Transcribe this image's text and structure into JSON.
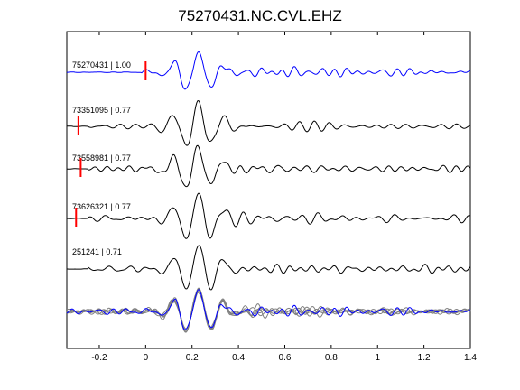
{
  "chart_data": {
    "type": "line",
    "title": "75270431.NC.CVL.EHZ",
    "xlabel": "",
    "ylabel": "",
    "xlim": [
      -0.34,
      1.4
    ],
    "x_ticks": [
      "-0.2",
      "0",
      "0.2",
      "0.4",
      "0.6",
      "0.8",
      "1",
      "1.2",
      "1.4"
    ],
    "x_tick_values": [
      -0.2,
      0,
      0.2,
      0.4,
      0.6,
      0.8,
      1,
      1.2,
      1.4
    ],
    "grid": false,
    "traces": [
      {
        "label": "75270431 | 1.00",
        "color": "#0000ff",
        "pick_time": 0.0,
        "seed": 1
      },
      {
        "label": "73351095 | 0.77",
        "color": "#000000",
        "pick_time": -0.29,
        "seed": 2
      },
      {
        "label": "73558981 | 0.77",
        "color": "#000000",
        "pick_time": -0.28,
        "seed": 3
      },
      {
        "label": "73626321 | 0.77",
        "color": "#000000",
        "pick_time": -0.3,
        "seed": 4
      },
      {
        "label": "251241 | 0.71",
        "color": "#000000",
        "pick_time": null,
        "seed": 5
      }
    ],
    "stack": {
      "colors": [
        "#808080",
        "#0000ff"
      ]
    },
    "pick_color": "#ff0000"
  }
}
